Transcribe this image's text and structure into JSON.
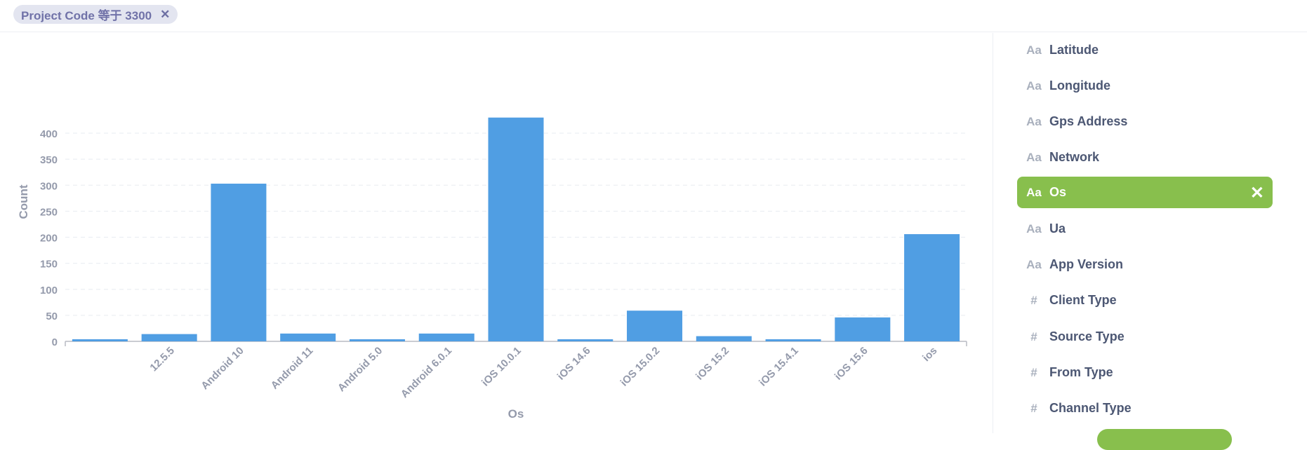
{
  "filter": {
    "label": "Project Code 等于 3300",
    "close": "✕"
  },
  "chart_data": {
    "type": "bar",
    "categories": [
      "",
      "12.5.5",
      "Android 10",
      "Android 11",
      "Android 5.0",
      "Android 6.0.1",
      "iOS 10.0.1",
      "iOS 14.6",
      "iOS 15.0.2",
      "iOS 15.2",
      "iOS 15.4.1",
      "iOS 15.6",
      "ios"
    ],
    "values": [
      4,
      14,
      303,
      15,
      4,
      15,
      430,
      4,
      59,
      10,
      4,
      46,
      206
    ],
    "xlabel": "Os",
    "ylabel": "Count",
    "ylim": [
      0,
      430
    ],
    "yticks": [
      0,
      50,
      100,
      150,
      200,
      250,
      300,
      350,
      400
    ],
    "grid": true,
    "bar_color": "#509ee3"
  },
  "sidebar": {
    "items": [
      {
        "icon": "Aa",
        "icon_name": "text-type-icon",
        "label": "Latitude",
        "active": false
      },
      {
        "icon": "Aa",
        "icon_name": "text-type-icon",
        "label": "Longitude",
        "active": false
      },
      {
        "icon": "Aa",
        "icon_name": "text-type-icon",
        "label": "Gps Address",
        "active": false
      },
      {
        "icon": "Aa",
        "icon_name": "text-type-icon",
        "label": "Network",
        "active": false
      },
      {
        "icon": "Aa",
        "icon_name": "text-type-icon",
        "label": "Os",
        "active": true,
        "remove": "✕"
      },
      {
        "icon": "Aa",
        "icon_name": "text-type-icon",
        "label": "Ua",
        "active": false
      },
      {
        "icon": "Aa",
        "icon_name": "text-type-icon",
        "label": "App Version",
        "active": false
      },
      {
        "icon": "#",
        "icon_name": "number-type-icon",
        "label": "Client Type",
        "active": false
      },
      {
        "icon": "#",
        "icon_name": "number-type-icon",
        "label": "Source Type",
        "active": false
      },
      {
        "icon": "#",
        "icon_name": "number-type-icon",
        "label": "From Type",
        "active": false
      },
      {
        "icon": "#",
        "icon_name": "number-type-icon",
        "label": "Channel Type",
        "active": false
      }
    ]
  },
  "colors": {
    "accent_green": "#88bf4d",
    "bar_blue": "#509ee3",
    "filter_bg": "#e3e5f0"
  }
}
